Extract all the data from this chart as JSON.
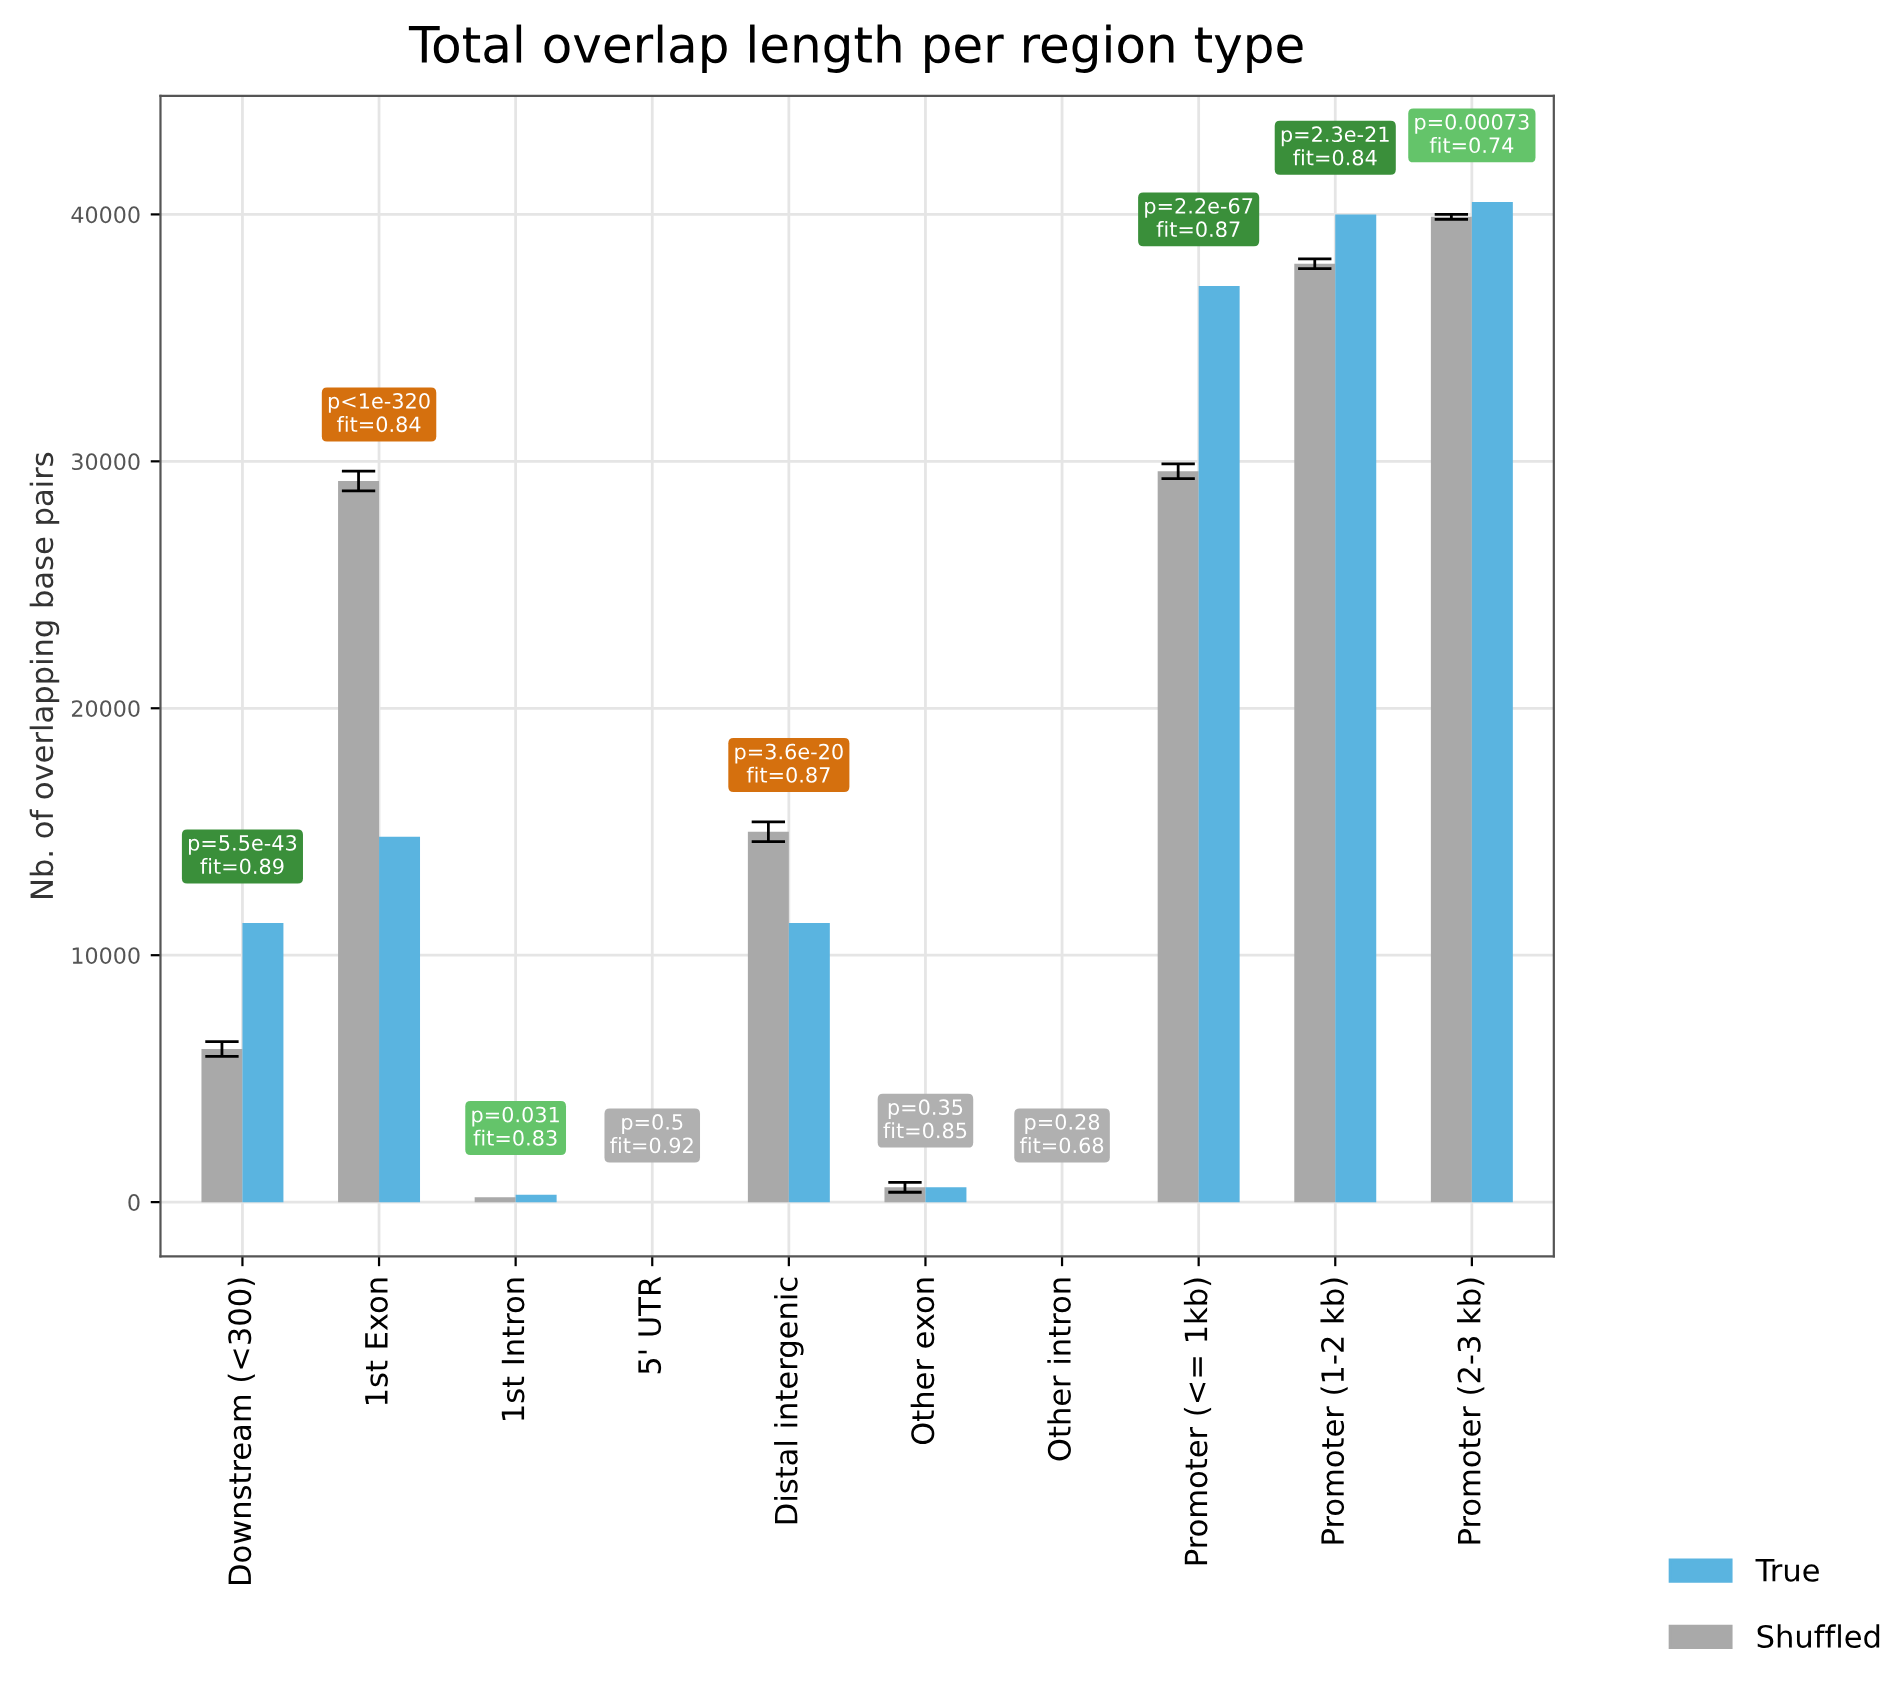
{
  "chart_data": {
    "type": "bar",
    "title": "Total overlap length per region type",
    "ylabel": "Nb. of overlapping base pairs",
    "categories": [
      "Downstream (<300)",
      "1st Exon",
      "1st Intron",
      "5' UTR",
      "Distal intergenic",
      "Other exon",
      "Other intron",
      "Promoter (<= 1kb)",
      "Promoter (1-2 kb)",
      "Promoter (2-3 kb)"
    ],
    "series": [
      {
        "name": "Shuffled",
        "color": "#a9a9a9",
        "values": [
          6200,
          29200,
          200,
          0,
          15000,
          600,
          0,
          29600,
          38000,
          39900
        ],
        "errors": [
          300,
          400,
          null,
          null,
          400,
          200,
          null,
          300,
          200,
          100
        ]
      },
      {
        "name": "True",
        "color": "#5ab4e0",
        "values": [
          11300,
          14800,
          300,
          0,
          11300,
          600,
          0,
          37100,
          40000,
          40500
        ]
      }
    ],
    "ylim": [
      -2200,
      44800
    ],
    "yticks": [
      0,
      10000,
      20000,
      30000,
      40000
    ],
    "grid": true,
    "legend": "bottom right",
    "annotations": [
      {
        "text": "p=5.5e-43\nfit=0.89",
        "x": "Downstream (<300)",
        "y": 11300
      },
      {
        "text": "p<1e-320\nfit=0.84",
        "x": "1st Exon",
        "y": 29200
      },
      {
        "text": "p=0.031\nfit=0.83",
        "x": "1st Intron",
        "y": 300
      },
      {
        "text": "p=0.5\nfit=0.92",
        "x": "5' UTR",
        "y": 0
      },
      {
        "text": "p=3.6e-20\nfit=0.87",
        "x": "Distal intergenic",
        "y": 15000
      },
      {
        "text": "p=0.35\nfit=0.85",
        "x": "Other exon",
        "y": 600
      },
      {
        "text": "p=0.28\nfit=0.68",
        "x": "Other intron",
        "y": 0
      },
      {
        "text": "p=2.2e-67\nfit=0.87",
        "x": "Promoter (<= 1kb)",
        "y": 37100
      },
      {
        "text": "p=2.3e-21\nfit=0.84",
        "x": "Promoter (1-2 kb)",
        "y": 40000
      },
      {
        "text": "p=0.00073\nfit=0.74",
        "x": "Promoter (2-3 kb)",
        "y": 40500
      }
    ]
  }
}
